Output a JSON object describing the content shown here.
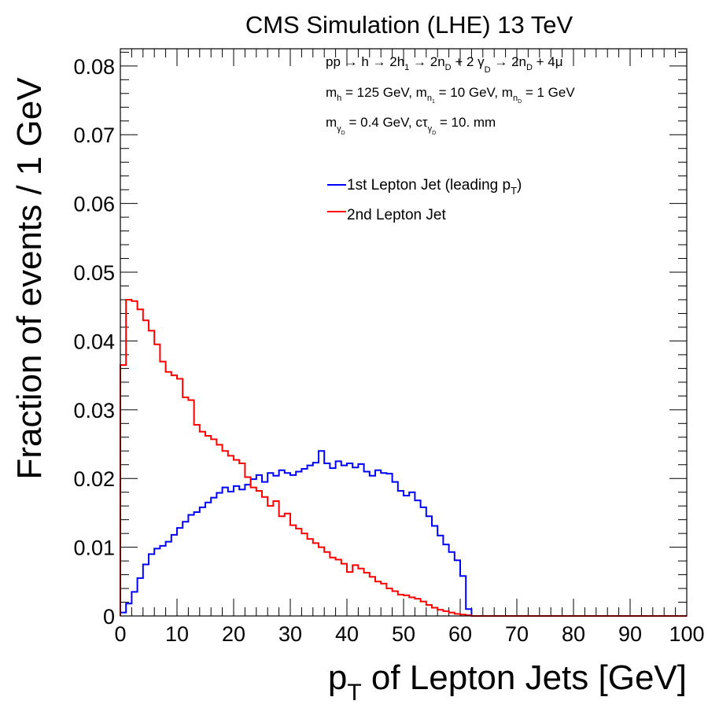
{
  "chart_data": {
    "type": "line",
    "title": "CMS Simulation (LHE) 13 TeV",
    "xlabel": "p_T of Lepton Jets [GeV]",
    "ylabel": "Fraction of events / 1 GeV",
    "xlim": [
      0,
      100
    ],
    "ylim": [
      0,
      0.0825
    ],
    "xticks": [
      0,
      10,
      20,
      30,
      40,
      50,
      60,
      70,
      80,
      90,
      100
    ],
    "xtick_labels": [
      "0",
      "10",
      "20",
      "30",
      "40",
      "50",
      "60",
      "70",
      "80",
      "90",
      "100"
    ],
    "yticks": [
      0,
      0.01,
      0.02,
      0.03,
      0.04,
      0.05,
      0.06,
      0.07,
      0.08
    ],
    "ytick_labels": [
      "0",
      "0.01",
      "0.02",
      "0.03",
      "0.04",
      "0.05",
      "0.06",
      "0.07",
      "0.08"
    ],
    "bin_width": 1,
    "grid": false,
    "legend_position": "upper-right",
    "annotations": [
      "pp → h → 2h_1 → 2n_D + 2 γ_D → 2n_D + 4μ",
      "m_h = 125 GeV, m_n1 = 10 GeV, m_nD = 1 GeV",
      "m_γD = 0.4 GeV, cτ_γD = 10. mm"
    ],
    "series": [
      {
        "name": "1st Lepton Jet (leading p_T)",
        "color": "#0000ff",
        "values": [
          0.0005,
          0.0018,
          0.0035,
          0.0055,
          0.0075,
          0.009,
          0.0098,
          0.0102,
          0.0108,
          0.0118,
          0.0128,
          0.0137,
          0.0147,
          0.0151,
          0.0158,
          0.0165,
          0.0172,
          0.0179,
          0.0187,
          0.0181,
          0.0189,
          0.0184,
          0.0191,
          0.0199,
          0.0205,
          0.0195,
          0.0208,
          0.0204,
          0.0212,
          0.0208,
          0.0205,
          0.021,
          0.0214,
          0.0219,
          0.0223,
          0.024,
          0.0222,
          0.0215,
          0.0225,
          0.0219,
          0.0222,
          0.0216,
          0.0221,
          0.021,
          0.0204,
          0.0212,
          0.0208,
          0.0207,
          0.0195,
          0.0182,
          0.0175,
          0.018,
          0.0168,
          0.0158,
          0.0145,
          0.0131,
          0.0117,
          0.0104,
          0.0093,
          0.0081,
          0.0058,
          0.001,
          0,
          0,
          0,
          0,
          0,
          0,
          0,
          0,
          0,
          0,
          0,
          0,
          0,
          0,
          0,
          0,
          0,
          0,
          0,
          0,
          0,
          0,
          0,
          0,
          0,
          0,
          0,
          0,
          0,
          0,
          0,
          0,
          0,
          0,
          0,
          0,
          0,
          0
        ]
      },
      {
        "name": "2nd Lepton Jet",
        "color": "#ff0000",
        "values": [
          0.0365,
          0.046,
          0.0458,
          0.0446,
          0.043,
          0.0415,
          0.0395,
          0.037,
          0.0355,
          0.035,
          0.0345,
          0.0318,
          0.0314,
          0.0278,
          0.0268,
          0.0262,
          0.0257,
          0.0249,
          0.024,
          0.0233,
          0.0227,
          0.0222,
          0.0202,
          0.0187,
          0.0182,
          0.0173,
          0.016,
          0.0167,
          0.0145,
          0.0149,
          0.0132,
          0.0127,
          0.012,
          0.0112,
          0.0106,
          0.01,
          0.0093,
          0.0085,
          0.0082,
          0.0076,
          0.0064,
          0.0074,
          0.0069,
          0.0063,
          0.0057,
          0.005,
          0.0047,
          0.004,
          0.0036,
          0.0031,
          0.003,
          0.0027,
          0.0025,
          0.0021,
          0.0016,
          0.0012,
          0.0009,
          0.0007,
          0.0005,
          0.0003,
          0.0002,
          0.0001,
          0,
          0,
          0,
          0,
          0,
          0,
          0,
          0,
          0,
          0,
          0,
          0,
          0,
          0,
          0,
          0,
          0,
          0,
          0,
          0,
          0,
          0,
          0,
          0,
          0,
          0,
          0,
          0,
          0,
          0,
          0,
          0,
          0,
          0,
          0,
          0,
          0,
          0
        ]
      }
    ]
  }
}
